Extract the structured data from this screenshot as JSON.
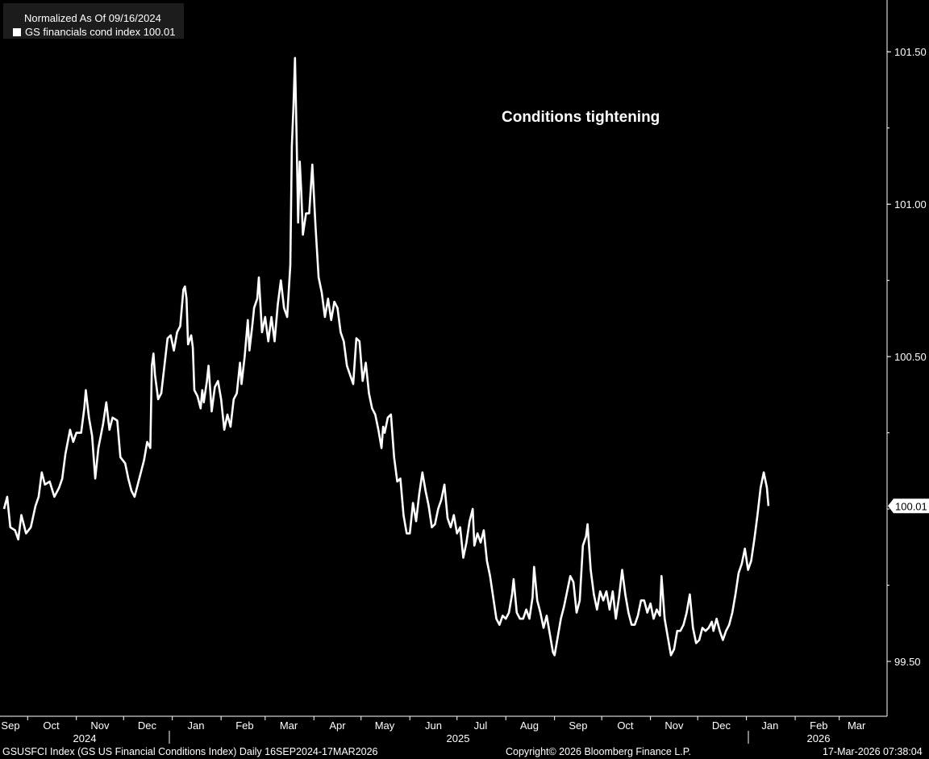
{
  "legend": {
    "title": "Normalized As Of 09/16/2024",
    "entry": "GS financials cond index 100.01",
    "swatch_color": "#ffffff"
  },
  "annotation": "Conditions tightening",
  "footer": {
    "source": "GSUSFCI Index (GS US Financial Conditions Index) Daily 16SEP2024-17MAR2026",
    "copyright": "Copyright© 2026 Bloomberg Finance L.P.",
    "timestamp": "17-Mar-2026 07:38:04"
  },
  "colors": {
    "background": "#000000",
    "line": "#ffffff",
    "text": "#ffffff"
  },
  "chart_data": {
    "type": "line",
    "title": "",
    "xlabel": "",
    "ylabel": "",
    "ylim": [
      99.32,
      101.67
    ],
    "y_ticks": [
      "101.50",
      "101.00",
      "100.50",
      "99.50"
    ],
    "last_value_label": "100.01",
    "x_tick_labels": [
      "Sep",
      "Oct",
      "Nov",
      "Dec",
      "Jan",
      "Feb",
      "Mar",
      "Apr",
      "May",
      "Jun",
      "Jul",
      "Aug",
      "Sep",
      "Oct",
      "Nov",
      "Dec",
      "Jan",
      "Feb",
      "Mar"
    ],
    "x_year_labels": [
      "2024",
      "2025",
      "2026"
    ],
    "x_range": [
      "2024-09-16",
      "2026-03-17"
    ],
    "grid": false,
    "legend_position": "top-left",
    "series": [
      {
        "name": "GS financials cond index",
        "color": "#ffffff",
        "points": [
          [
            "2024-09-16",
            100.0
          ],
          [
            "2024-09-18",
            100.04
          ],
          [
            "2024-09-20",
            99.94
          ],
          [
            "2024-09-23",
            99.93
          ],
          [
            "2024-09-25",
            99.9
          ],
          [
            "2024-09-27",
            99.98
          ],
          [
            "2024-09-30",
            99.92
          ],
          [
            "2024-10-03",
            99.94
          ],
          [
            "2024-10-06",
            100.01
          ],
          [
            "2024-10-08",
            100.04
          ],
          [
            "2024-10-10",
            100.12
          ],
          [
            "2024-10-12",
            100.08
          ],
          [
            "2024-10-15",
            100.09
          ],
          [
            "2024-10-18",
            100.04
          ],
          [
            "2024-10-21",
            100.07
          ],
          [
            "2024-10-23",
            100.1
          ],
          [
            "2024-10-25",
            100.18
          ],
          [
            "2024-10-28",
            100.26
          ],
          [
            "2024-10-30",
            100.22
          ],
          [
            "2024-11-01",
            100.25
          ],
          [
            "2024-11-04",
            100.25
          ],
          [
            "2024-11-06",
            100.33
          ],
          [
            "2024-11-07",
            100.39
          ],
          [
            "2024-11-09",
            100.3
          ],
          [
            "2024-11-11",
            100.24
          ],
          [
            "2024-11-13",
            100.1
          ],
          [
            "2024-11-15",
            100.2
          ],
          [
            "2024-11-18",
            100.28
          ],
          [
            "2024-11-20",
            100.35
          ],
          [
            "2024-11-22",
            100.26
          ],
          [
            "2024-11-24",
            100.3
          ],
          [
            "2024-11-27",
            100.29
          ],
          [
            "2024-11-29",
            100.17
          ],
          [
            "2024-12-02",
            100.15
          ],
          [
            "2024-12-04",
            100.1
          ],
          [
            "2024-12-06",
            100.06
          ],
          [
            "2024-12-08",
            100.04
          ],
          [
            "2024-12-10",
            100.08
          ],
          [
            "2024-12-12",
            100.12
          ],
          [
            "2024-12-14",
            100.16
          ],
          [
            "2024-12-16",
            100.22
          ],
          [
            "2024-12-18",
            100.2
          ],
          [
            "2024-12-19",
            100.47
          ],
          [
            "2024-12-20",
            100.51
          ],
          [
            "2024-12-21",
            100.44
          ],
          [
            "2024-12-23",
            100.36
          ],
          [
            "2024-12-25",
            100.38
          ],
          [
            "2024-12-27",
            100.47
          ],
          [
            "2024-12-29",
            100.56
          ],
          [
            "2024-12-31",
            100.57
          ],
          [
            "2025-01-02",
            100.52
          ],
          [
            "2025-01-04",
            100.58
          ],
          [
            "2025-01-06",
            100.6
          ],
          [
            "2025-01-08",
            100.72
          ],
          [
            "2025-01-09",
            100.73
          ],
          [
            "2025-01-10",
            100.69
          ],
          [
            "2025-01-11",
            100.54
          ],
          [
            "2025-01-13",
            100.57
          ],
          [
            "2025-01-14",
            100.53
          ],
          [
            "2025-01-15",
            100.39
          ],
          [
            "2025-01-17",
            100.37
          ],
          [
            "2025-01-19",
            100.33
          ],
          [
            "2025-01-20",
            100.39
          ],
          [
            "2025-01-21",
            100.35
          ],
          [
            "2025-01-23",
            100.42
          ],
          [
            "2025-01-24",
            100.47
          ],
          [
            "2025-01-26",
            100.32
          ],
          [
            "2025-01-28",
            100.4
          ],
          [
            "2025-01-30",
            100.42
          ],
          [
            "2025-02-01",
            100.36
          ],
          [
            "2025-02-03",
            100.26
          ],
          [
            "2025-02-05",
            100.31
          ],
          [
            "2025-02-07",
            100.27
          ],
          [
            "2025-02-09",
            100.36
          ],
          [
            "2025-02-11",
            100.38
          ],
          [
            "2025-02-13",
            100.48
          ],
          [
            "2025-02-14",
            100.41
          ],
          [
            "2025-02-16",
            100.5
          ],
          [
            "2025-02-18",
            100.62
          ],
          [
            "2025-02-19",
            100.52
          ],
          [
            "2025-02-21",
            100.61
          ],
          [
            "2025-02-22",
            100.66
          ],
          [
            "2025-02-24",
            100.69
          ],
          [
            "2025-02-25",
            100.76
          ],
          [
            "2025-02-27",
            100.58
          ],
          [
            "2025-03-01",
            100.63
          ],
          [
            "2025-03-03",
            100.55
          ],
          [
            "2025-03-05",
            100.63
          ],
          [
            "2025-03-07",
            100.55
          ],
          [
            "2025-03-09",
            100.67
          ],
          [
            "2025-03-11",
            100.75
          ],
          [
            "2025-03-13",
            100.66
          ],
          [
            "2025-03-15",
            100.63
          ],
          [
            "2025-03-17",
            100.8
          ],
          [
            "2025-03-18",
            101.19
          ],
          [
            "2025-03-19",
            101.32
          ],
          [
            "2025-03-20",
            101.48
          ],
          [
            "2025-03-21",
            101.22
          ],
          [
            "2025-03-22",
            100.94
          ],
          [
            "2025-03-23",
            101.14
          ],
          [
            "2025-03-24",
            101.04
          ],
          [
            "2025-03-25",
            100.9
          ],
          [
            "2025-03-27",
            100.97
          ],
          [
            "2025-03-29",
            100.97
          ],
          [
            "2025-03-31",
            101.13
          ],
          [
            "2025-04-02",
            100.93
          ],
          [
            "2025-04-04",
            100.76
          ],
          [
            "2025-04-06",
            100.71
          ],
          [
            "2025-04-08",
            100.63
          ],
          [
            "2025-04-10",
            100.69
          ],
          [
            "2025-04-12",
            100.62
          ],
          [
            "2025-04-14",
            100.68
          ],
          [
            "2025-04-16",
            100.66
          ],
          [
            "2025-04-18",
            100.58
          ],
          [
            "2025-04-20",
            100.55
          ],
          [
            "2025-04-22",
            100.47
          ],
          [
            "2025-04-24",
            100.44
          ],
          [
            "2025-04-26",
            100.41
          ],
          [
            "2025-04-28",
            100.56
          ],
          [
            "2025-04-30",
            100.55
          ],
          [
            "2025-05-02",
            100.42
          ],
          [
            "2025-05-04",
            100.48
          ],
          [
            "2025-05-06",
            100.38
          ],
          [
            "2025-05-08",
            100.33
          ],
          [
            "2025-05-10",
            100.31
          ],
          [
            "2025-05-12",
            100.26
          ],
          [
            "2025-05-14",
            100.2
          ],
          [
            "2025-05-15",
            100.27
          ],
          [
            "2025-05-16",
            100.25
          ],
          [
            "2025-05-18",
            100.3
          ],
          [
            "2025-05-20",
            100.31
          ],
          [
            "2025-05-22",
            100.17
          ],
          [
            "2025-05-24",
            100.09
          ],
          [
            "2025-05-26",
            100.1
          ],
          [
            "2025-05-28",
            99.98
          ],
          [
            "2025-05-30",
            99.92
          ],
          [
            "2025-06-01",
            99.92
          ],
          [
            "2025-06-03",
            100.02
          ],
          [
            "2025-06-05",
            99.96
          ],
          [
            "2025-06-07",
            100.05
          ],
          [
            "2025-06-09",
            100.12
          ],
          [
            "2025-06-11",
            100.06
          ],
          [
            "2025-06-13",
            100.01
          ],
          [
            "2025-06-15",
            99.94
          ],
          [
            "2025-06-17",
            99.95
          ],
          [
            "2025-06-19",
            100.0
          ],
          [
            "2025-06-21",
            100.03
          ],
          [
            "2025-06-23",
            100.08
          ],
          [
            "2025-06-25",
            99.97
          ],
          [
            "2025-06-27",
            99.94
          ],
          [
            "2025-06-29",
            99.98
          ],
          [
            "2025-07-01",
            99.92
          ],
          [
            "2025-07-03",
            99.94
          ],
          [
            "2025-07-05",
            99.84
          ],
          [
            "2025-07-07",
            99.89
          ],
          [
            "2025-07-09",
            99.96
          ],
          [
            "2025-07-11",
            100.0
          ],
          [
            "2025-07-12",
            99.88
          ],
          [
            "2025-07-14",
            99.92
          ],
          [
            "2025-07-16",
            99.89
          ],
          [
            "2025-07-18",
            99.93
          ],
          [
            "2025-07-20",
            99.83
          ],
          [
            "2025-07-22",
            99.78
          ],
          [
            "2025-07-24",
            99.71
          ],
          [
            "2025-07-26",
            99.64
          ],
          [
            "2025-07-28",
            99.62
          ],
          [
            "2025-07-30",
            99.65
          ],
          [
            "2025-08-01",
            99.64
          ],
          [
            "2025-08-03",
            99.66
          ],
          [
            "2025-08-05",
            99.72
          ],
          [
            "2025-08-06",
            99.77
          ],
          [
            "2025-08-08",
            99.66
          ],
          [
            "2025-08-10",
            99.64
          ],
          [
            "2025-08-12",
            99.64
          ],
          [
            "2025-08-14",
            99.67
          ],
          [
            "2025-08-16",
            99.64
          ],
          [
            "2025-08-18",
            99.71
          ],
          [
            "2025-08-19",
            99.81
          ],
          [
            "2025-08-21",
            99.7
          ],
          [
            "2025-08-23",
            99.66
          ],
          [
            "2025-08-25",
            99.61
          ],
          [
            "2025-08-27",
            99.65
          ],
          [
            "2025-08-29",
            99.59
          ],
          [
            "2025-08-31",
            99.53
          ],
          [
            "2025-09-01",
            99.52
          ],
          [
            "2025-09-03",
            99.58
          ],
          [
            "2025-09-05",
            99.64
          ],
          [
            "2025-09-07",
            99.68
          ],
          [
            "2025-09-09",
            99.73
          ],
          [
            "2025-09-11",
            99.78
          ],
          [
            "2025-09-13",
            99.76
          ],
          [
            "2025-09-15",
            99.66
          ],
          [
            "2025-09-17",
            99.7
          ],
          [
            "2025-09-19",
            99.88
          ],
          [
            "2025-09-21",
            99.91
          ],
          [
            "2025-09-22",
            99.95
          ],
          [
            "2025-09-24",
            99.8
          ],
          [
            "2025-09-26",
            99.72
          ],
          [
            "2025-09-28",
            99.67
          ],
          [
            "2025-09-30",
            99.73
          ],
          [
            "2025-10-02",
            99.7
          ],
          [
            "2025-10-04",
            99.73
          ],
          [
            "2025-10-06",
            99.67
          ],
          [
            "2025-10-08",
            99.73
          ],
          [
            "2025-10-10",
            99.64
          ],
          [
            "2025-10-12",
            99.71
          ],
          [
            "2025-10-14",
            99.8
          ],
          [
            "2025-10-16",
            99.72
          ],
          [
            "2025-10-18",
            99.66
          ],
          [
            "2025-10-20",
            99.62
          ],
          [
            "2025-10-22",
            99.62
          ],
          [
            "2025-10-24",
            99.65
          ],
          [
            "2025-10-26",
            99.7
          ],
          [
            "2025-10-28",
            99.7
          ],
          [
            "2025-10-30",
            99.66
          ],
          [
            "2025-11-01",
            99.69
          ],
          [
            "2025-11-03",
            99.64
          ],
          [
            "2025-11-05",
            99.67
          ],
          [
            "2025-11-07",
            99.65
          ],
          [
            "2025-11-08",
            99.78
          ],
          [
            "2025-11-10",
            99.64
          ],
          [
            "2025-11-12",
            99.58
          ],
          [
            "2025-11-14",
            99.52
          ],
          [
            "2025-11-16",
            99.54
          ],
          [
            "2025-11-18",
            99.6
          ],
          [
            "2025-11-20",
            99.6
          ],
          [
            "2025-11-22",
            99.62
          ],
          [
            "2025-11-24",
            99.66
          ],
          [
            "2025-11-26",
            99.72
          ],
          [
            "2025-11-28",
            99.61
          ],
          [
            "2025-11-30",
            99.56
          ],
          [
            "2025-12-02",
            99.57
          ],
          [
            "2025-12-04",
            99.61
          ],
          [
            "2025-12-06",
            99.6
          ],
          [
            "2025-12-08",
            99.61
          ],
          [
            "2025-12-10",
            99.63
          ],
          [
            "2025-12-11",
            99.6
          ],
          [
            "2025-12-13",
            99.64
          ],
          [
            "2025-12-15",
            99.6
          ],
          [
            "2025-12-17",
            99.57
          ],
          [
            "2025-12-19",
            99.6
          ],
          [
            "2025-12-21",
            99.62
          ],
          [
            "2025-12-23",
            99.66
          ],
          [
            "2025-12-25",
            99.72
          ],
          [
            "2025-12-27",
            99.79
          ],
          [
            "2025-12-29",
            99.82
          ],
          [
            "2025-12-31",
            99.87
          ],
          [
            "2026-01-02",
            99.8
          ],
          [
            "2026-01-04",
            99.83
          ],
          [
            "2026-01-06",
            99.9
          ],
          [
            "2026-01-08",
            99.98
          ],
          [
            "2026-01-10",
            100.07
          ],
          [
            "2026-01-12",
            100.12
          ],
          [
            "2026-01-14",
            100.07
          ],
          [
            "2026-01-15",
            100.01
          ]
        ]
      }
    ]
  }
}
